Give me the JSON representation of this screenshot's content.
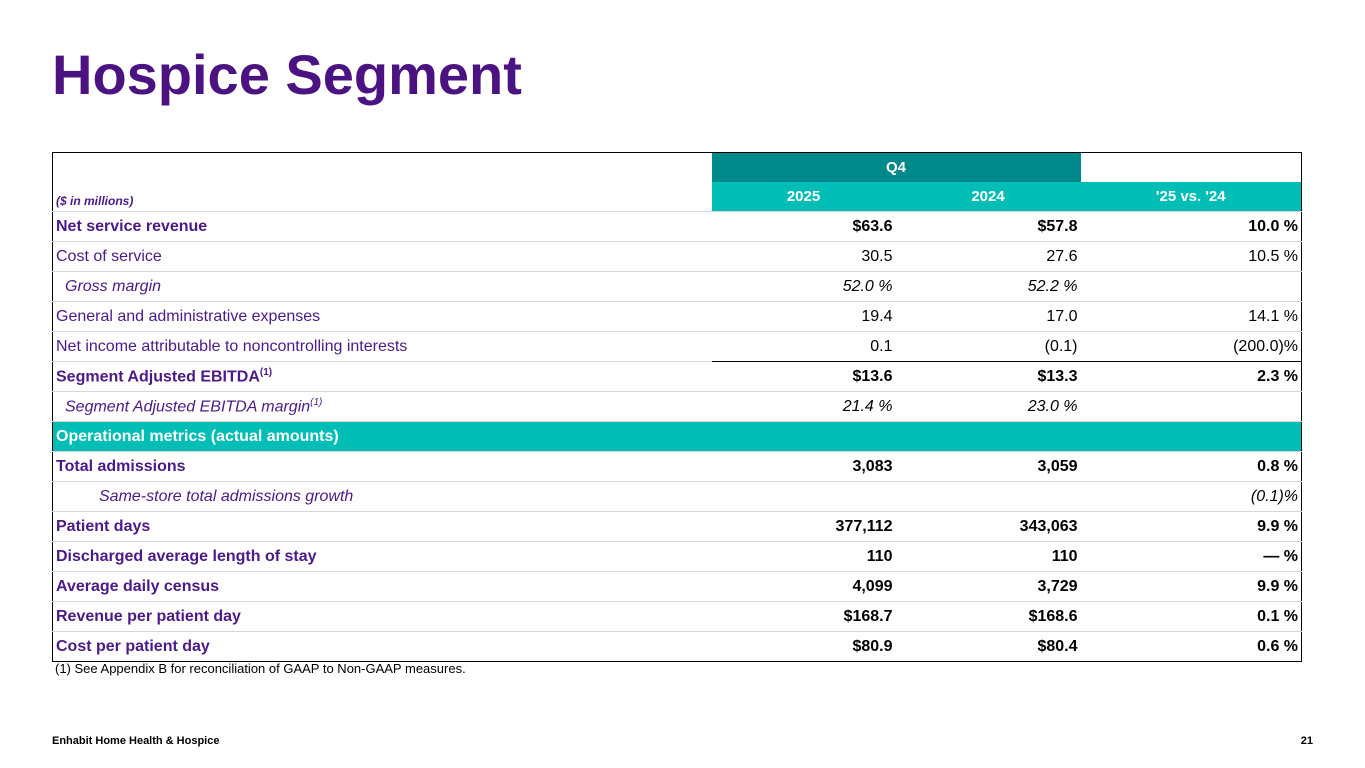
{
  "header": {
    "title": "Hospice Segment"
  },
  "table": {
    "group": "Q4",
    "units": "($ in millions)",
    "columns": [
      "2025",
      "2024",
      "'25 vs. '24"
    ],
    "rows": [
      {
        "label": "Net service revenue",
        "style": "bold",
        "cells": [
          "$63.6",
          "$57.8",
          "10.0 %"
        ]
      },
      {
        "label": "Cost of service",
        "style": "plain",
        "cells": [
          "30.5",
          "27.6",
          "10.5 %"
        ]
      },
      {
        "label": "Gross margin",
        "style": "italic",
        "indent": 1,
        "cells": [
          "52.0 %",
          "52.2 %",
          null
        ]
      },
      {
        "label": "General and administrative expenses",
        "style": "plain",
        "cells": [
          "19.4",
          "17.0",
          "14.1 %"
        ]
      },
      {
        "label": "Net income attributable to noncontrolling interests",
        "style": "plain",
        "cells": [
          "0.1",
          "(0.1)",
          "(200.0)%"
        ]
      },
      {
        "label": "Segment Adjusted EBITDA",
        "note": "(1)",
        "style": "bold",
        "cells": [
          "$13.6",
          "$13.3",
          "2.3 %"
        ]
      },
      {
        "label": "Segment Adjusted EBITDA margin",
        "note": "(1)",
        "style": "italic",
        "indent": 1,
        "cells": [
          "21.4 %",
          "23.0 %",
          null
        ]
      }
    ],
    "metrics": {
      "title": "Operational metrics (actual amounts)",
      "rows": [
        {
          "label": "Total admissions",
          "style": "bold",
          "cells": [
            "3,083",
            "3,059",
            "0.8 %"
          ]
        },
        {
          "label": "Same-store total admissions growth",
          "style": "italic",
          "indent": 2,
          "cells": [
            null,
            null,
            "(0.1)%"
          ]
        },
        {
          "label": "Patient days",
          "style": "bold",
          "cells": [
            "377,112",
            "343,063",
            "9.9 %"
          ]
        },
        {
          "label": "Discharged average length of stay",
          "style": "bold",
          "cells": [
            "110",
            "110",
            "— %"
          ]
        },
        {
          "label": "Average daily census",
          "style": "bold",
          "cells": [
            "4,099",
            "3,729",
            "9.9 %"
          ]
        },
        {
          "label": "Revenue per patient day",
          "style": "bold",
          "cells": [
            "$168.7",
            "$168.6",
            "0.1 %"
          ]
        },
        {
          "label": "Cost per patient day",
          "style": "bold",
          "cells": [
            "$80.9",
            "$80.4",
            "0.6 %"
          ]
        }
      ]
    },
    "footnote": "(1) See Appendix B for reconciliation of GAAP to Non-GAAP measures."
  },
  "footer": {
    "company": "Enhabit Home Health & Hospice",
    "page": "21"
  }
}
